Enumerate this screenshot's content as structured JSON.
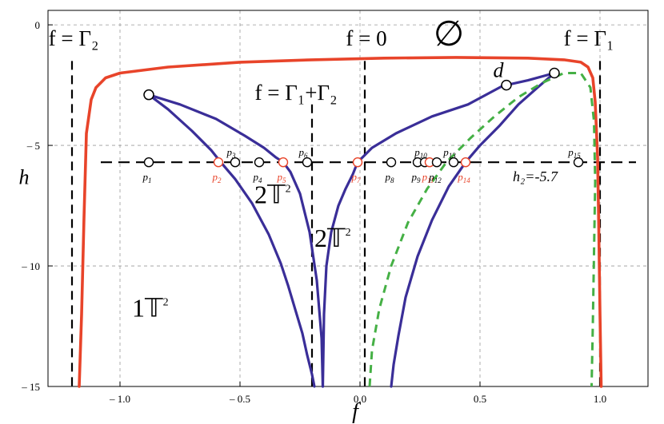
{
  "chart_data": {
    "type": "line",
    "xlabel": "f",
    "ylabel": "h",
    "xlim": [
      -1.3,
      1.2
    ],
    "ylim": [
      -15,
      0.6
    ],
    "x_ticks": [
      {
        "v": -1.0,
        "label": "– 1.0"
      },
      {
        "v": -0.5,
        "label": "– 0.5"
      },
      {
        "v": 0.0,
        "label": "0.0"
      },
      {
        "v": 0.5,
        "label": "0.5"
      },
      {
        "v": 1.0,
        "label": "1.0"
      }
    ],
    "y_ticks": [
      {
        "v": 0,
        "label": "0"
      },
      {
        "v": -5,
        "label": "– 5"
      },
      {
        "v": -10,
        "label": "– 10"
      },
      {
        "v": -15,
        "label": "– 15"
      }
    ],
    "grid": true,
    "series": [
      {
        "color": "#e8442a",
        "style": "solid",
        "x": [
          -1.17,
          -1.16,
          -1.15,
          -1.14,
          -1.12,
          -1.1,
          -1.06,
          -1.0,
          -0.8,
          -0.5,
          -0.2,
          0.1,
          0.4,
          0.7,
          0.85,
          0.92,
          0.95,
          0.97,
          0.98,
          0.99,
          0.995,
          1.0,
          1.005
        ],
        "y": [
          -15,
          -12,
          -8,
          -4.5,
          -3.1,
          -2.6,
          -2.2,
          -2.0,
          -1.75,
          -1.55,
          -1.45,
          -1.38,
          -1.35,
          -1.38,
          -1.45,
          -1.55,
          -1.75,
          -2.2,
          -3.2,
          -5.5,
          -8.5,
          -12,
          -15
        ]
      },
      {
        "color": "#3a2e98",
        "style": "solid",
        "x": [
          -0.88,
          -0.8,
          -0.7,
          -0.62,
          -0.58,
          -0.52,
          -0.45,
          -0.38,
          -0.33,
          -0.3,
          -0.27,
          -0.24,
          -0.22,
          -0.2,
          -0.19
        ],
        "y": [
          -2.9,
          -3.5,
          -4.4,
          -5.2,
          -5.7,
          -6.4,
          -7.4,
          -8.7,
          -9.9,
          -10.8,
          -11.8,
          -12.8,
          -13.7,
          -14.5,
          -15
        ]
      },
      {
        "color": "#3a2e98",
        "style": "solid",
        "x": [
          -0.88,
          -0.75,
          -0.6,
          -0.48,
          -0.4,
          -0.35,
          -0.32,
          -0.29,
          -0.25,
          -0.21,
          -0.18,
          -0.16,
          -0.155
        ],
        "y": [
          -2.9,
          -3.3,
          -3.9,
          -4.6,
          -5.1,
          -5.5,
          -5.7,
          -6.1,
          -7.0,
          -8.6,
          -10.6,
          -13.0,
          -15
        ]
      },
      {
        "color": "#3a2e98",
        "style": "solid",
        "x": [
          -0.155,
          -0.15,
          -0.14,
          -0.12,
          -0.09,
          -0.06,
          -0.03,
          -0.01,
          0.05,
          0.15,
          0.3,
          0.45,
          0.6,
          0.61
        ],
        "y": [
          -15,
          -12.0,
          -10.0,
          -8.6,
          -7.5,
          -6.8,
          -6.2,
          -5.7,
          -5.1,
          -4.5,
          -3.8,
          -3.3,
          -2.5,
          -2.5
        ]
      },
      {
        "color": "#3a2e98",
        "style": "solid",
        "x": [
          0.61,
          0.7,
          0.81
        ],
        "y": [
          -2.5,
          -2.3,
          -2.0
        ]
      },
      {
        "color": "#3a2e98",
        "style": "solid",
        "x": [
          0.81,
          0.74,
          0.66,
          0.58,
          0.5,
          0.44,
          0.37,
          0.3,
          0.24,
          0.19,
          0.16,
          0.14,
          0.13
        ],
        "y": [
          -2.0,
          -2.6,
          -3.3,
          -4.2,
          -5.0,
          -5.7,
          -6.7,
          -8.1,
          -9.6,
          -11.3,
          -12.9,
          -14.1,
          -15
        ]
      },
      {
        "color": "#45b045",
        "style": "dashed",
        "x": [
          0.04,
          0.05,
          0.08,
          0.13,
          0.2,
          0.28,
          0.36,
          0.46,
          0.56,
          0.66,
          0.76,
          0.85,
          0.92,
          0.96,
          0.975,
          0.98,
          0.975,
          0.97,
          0.965
        ],
        "y": [
          -15,
          -13.5,
          -11.8,
          -10.0,
          -8.2,
          -6.8,
          -5.7,
          -4.7,
          -3.8,
          -3.0,
          -2.4,
          -2.0,
          -2.0,
          -2.6,
          -4.0,
          -6.5,
          -9.5,
          -12.5,
          -15
        ]
      }
    ],
    "vlines": [
      {
        "x": -1.2,
        "label": "f = Γ₂"
      },
      {
        "x": -0.2,
        "label": "f = Γ₁+Γ₂"
      },
      {
        "x": 0.02,
        "label": "f = 0"
      },
      {
        "x": 1.0,
        "label": "f = Γ₁"
      }
    ],
    "hline": {
      "y": -5.7,
      "label": "h₂=-5.7"
    },
    "vertices": [
      {
        "x": -0.88,
        "y": -2.9
      },
      {
        "x": 0.61,
        "y": -2.5,
        "label": "d"
      },
      {
        "x": 0.81,
        "y": -2.0
      }
    ],
    "points": [
      {
        "name": "p",
        "sub": "1",
        "x": -0.88,
        "color": "#000000"
      },
      {
        "name": "p",
        "sub": "2",
        "x": -0.59,
        "color": "#e8442a"
      },
      {
        "name": "p",
        "sub": "3",
        "x": -0.52,
        "color": "#000000"
      },
      {
        "name": "p",
        "sub": "4",
        "x": -0.42,
        "color": "#000000"
      },
      {
        "name": "p",
        "sub": "5",
        "x": -0.32,
        "color": "#e8442a"
      },
      {
        "name": "p",
        "sub": "6",
        "x": -0.22,
        "color": "#000000"
      },
      {
        "name": "p",
        "sub": "7",
        "x": -0.01,
        "color": "#e8442a"
      },
      {
        "name": "p",
        "sub": "8",
        "x": 0.13,
        "color": "#000000"
      },
      {
        "name": "p",
        "sub": "9",
        "x": 0.24,
        "color": "#000000"
      },
      {
        "name": "p",
        "sub": "10",
        "x": 0.27,
        "color": "#000000"
      },
      {
        "name": "p",
        "sub": "11",
        "x": 0.29,
        "color": "#e8442a"
      },
      {
        "name": "p",
        "sub": "12",
        "x": 0.32,
        "color": "#000000"
      },
      {
        "name": "p",
        "sub": "13",
        "x": 0.39,
        "color": "#000000"
      },
      {
        "name": "p",
        "sub": "14",
        "x": 0.44,
        "color": "#e8442a"
      },
      {
        "name": "p",
        "sub": "15",
        "x": 0.91,
        "color": "#000000"
      }
    ],
    "region_labels": [
      {
        "text": "1𝕋",
        "sup": "2",
        "x": -0.95,
        "y": -12.1
      },
      {
        "text": "2𝕋",
        "sup": "2",
        "x": -0.44,
        "y": -7.4
      },
      {
        "text": "2𝕋",
        "sup": "2",
        "x": -0.19,
        "y": -9.2
      },
      {
        "text": "∅",
        "x": 0.37,
        "y": -0.6
      }
    ]
  }
}
